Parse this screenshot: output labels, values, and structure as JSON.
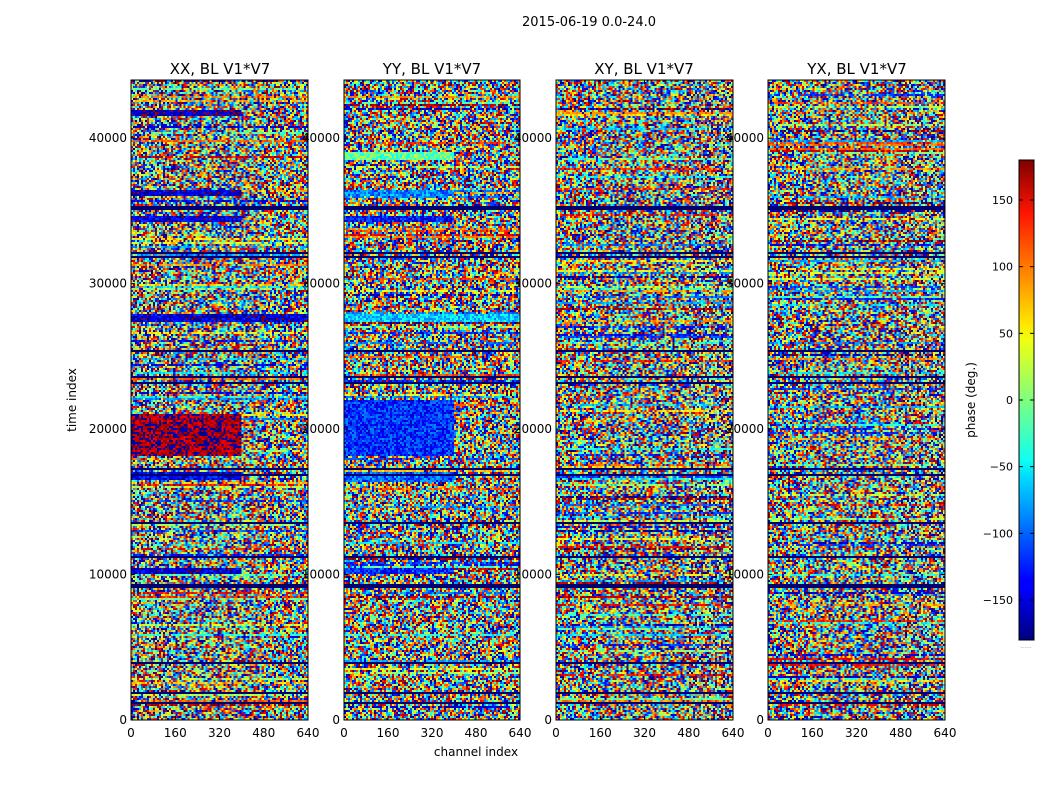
{
  "figure": {
    "suptitle": "2015-06-19 0.0-24.0"
  },
  "chart_data": {
    "type": "heatmap",
    "panels": [
      {
        "title": "XX, BL V1*V7"
      },
      {
        "title": "YY, BL V1*V7"
      },
      {
        "title": "XY, BL V1*V7"
      },
      {
        "title": "YX, BL V1*V7"
      }
    ],
    "xlabel": "channel index",
    "ylabel": "time index",
    "xlim": [
      0,
      640
    ],
    "ylim": [
      0,
      44000
    ],
    "xticks": [
      0,
      160,
      320,
      480,
      640
    ],
    "xtick_labels": [
      "0",
      "160",
      "320",
      "480",
      "640"
    ],
    "yticks": [
      0,
      10000,
      20000,
      30000,
      40000
    ],
    "ytick_labels": [
      "0",
      "10000",
      "20000",
      "30000",
      "40000"
    ],
    "colorbar": {
      "label": "phase (deg.)",
      "range": [
        -180,
        180
      ],
      "ticks": [
        -150,
        -100,
        -50,
        0,
        50,
        100,
        150
      ],
      "tick_labels": [
        "−150",
        "−100",
        "−50",
        "0",
        "50",
        "100",
        "150"
      ],
      "colormap": "jet",
      "below_label": "......"
    },
    "blank_rows": [
      1200,
      1900,
      3900,
      9200,
      11200,
      13500,
      16800,
      17300,
      23200,
      23600,
      25400,
      31800,
      32100,
      35200
    ],
    "coherent_bands": [
      {
        "panel": 0,
        "t0": 10000,
        "t1": 10500,
        "c1": 400,
        "phase": -150
      },
      {
        "panel": 0,
        "t0": 16500,
        "t1": 17000,
        "c1": 400,
        "phase": -140
      },
      {
        "panel": 0,
        "t0": 18200,
        "t1": 21000,
        "c1": 400,
        "phase": 170
      },
      {
        "panel": 0,
        "t0": 27400,
        "t1": 27900,
        "c1": 640,
        "phase": -150
      },
      {
        "panel": 0,
        "t0": 34200,
        "t1": 34600,
        "c1": 400,
        "phase": -150
      },
      {
        "panel": 0,
        "t0": 36000,
        "t1": 36400,
        "c1": 400,
        "phase": -150
      },
      {
        "panel": 0,
        "t0": 41500,
        "t1": 41900,
        "c1": 400,
        "phase": -160
      },
      {
        "panel": 1,
        "t0": 10000,
        "t1": 10500,
        "c1": 400,
        "phase": -120
      },
      {
        "panel": 1,
        "t0": 16400,
        "t1": 17000,
        "c1": 400,
        "phase": -100
      },
      {
        "panel": 1,
        "t0": 18200,
        "t1": 22000,
        "c1": 400,
        "phase": -120
      },
      {
        "panel": 1,
        "t0": 27400,
        "t1": 27900,
        "c1": 640,
        "phase": -60
      },
      {
        "panel": 1,
        "t0": 34200,
        "t1": 34600,
        "c1": 400,
        "phase": -130
      },
      {
        "panel": 1,
        "t0": 36000,
        "t1": 36400,
        "c1": 400,
        "phase": -90
      },
      {
        "panel": 1,
        "t0": 38500,
        "t1": 39000,
        "c1": 400,
        "phase": -10
      }
    ]
  }
}
